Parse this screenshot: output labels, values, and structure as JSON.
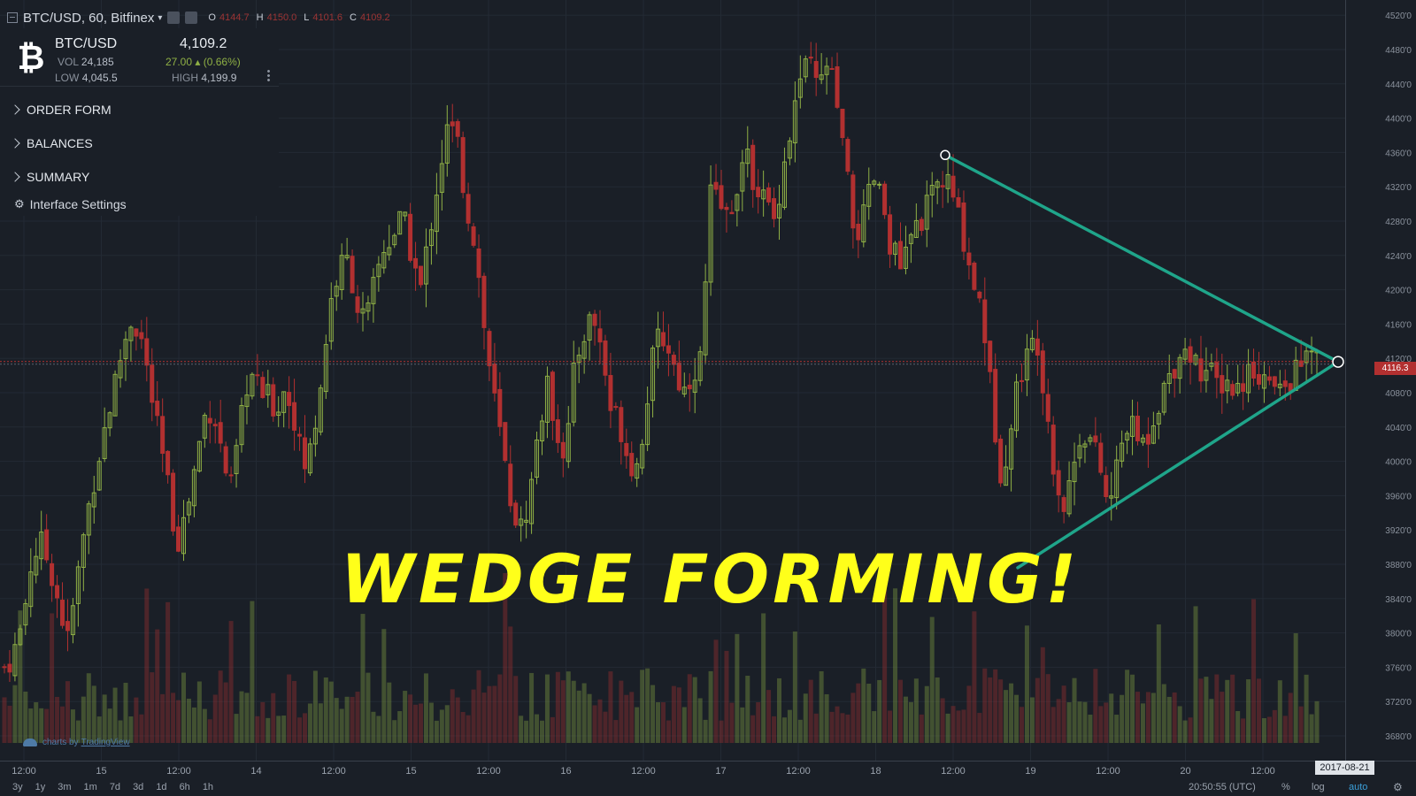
{
  "header": {
    "symbol": "BTC/USD, 60, Bitfinex",
    "ohlc": [
      {
        "k": "O",
        "v": "4144.7"
      },
      {
        "k": "H",
        "v": "4150.0"
      },
      {
        "k": "L",
        "v": "4101.6"
      },
      {
        "k": "C",
        "v": "4109.2"
      }
    ]
  },
  "ticker": {
    "pair": "BTC/USD",
    "price": "4,109.2",
    "vol_label": "VOL",
    "vol": "24,185",
    "change": "27.00 ▴ (0.66%)",
    "low_label": "LOW",
    "low": "4,045.5",
    "high_label": "HIGH",
    "high": "4,199.9",
    "logo_icon": "bitcoin-icon"
  },
  "panel": {
    "order_form": "ORDER FORM",
    "balances": "BALANCES",
    "summary": "SUMMARY",
    "settings": "Interface Settings"
  },
  "timeframes": [
    "3y",
    "1y",
    "3m",
    "1m",
    "7d",
    "3d",
    "1d",
    "6h",
    "1h"
  ],
  "footer": {
    "clock": "20:50:55 (UTC)",
    "pct": "%",
    "log": "log",
    "auto": "auto",
    "watermark_prefix": "charts by",
    "watermark_brand": "TradingView"
  },
  "last_price_label": "4116.3",
  "cursor_date": "2017-08-21",
  "annotation": "WEDGE FORMING!",
  "colors": {
    "background": "#1a1f27",
    "up": "#8fb045",
    "down": "#b23030",
    "wedge": "#1fa58a",
    "annotation": "#ffff1a"
  },
  "chart_data": {
    "type": "candlestick",
    "symbol": "BTC/USD",
    "interval": "60",
    "exchange": "Bitfinex",
    "ylim": [
      3660,
      4530
    ],
    "y_ticks": [
      3680,
      3720,
      3760,
      3800,
      3840,
      3880,
      3920,
      3960,
      4000,
      4040,
      4080,
      4120,
      4160,
      4200,
      4240,
      4280,
      4320,
      4360,
      4400,
      4440,
      4480,
      4520
    ],
    "x_ticks": [
      "12:00",
      "15",
      "12:00",
      "14",
      "12:00",
      "15",
      "12:00",
      "16",
      "12:00",
      "17",
      "12:00",
      "18",
      "12:00",
      "19",
      "12:00",
      "20",
      "12:00"
    ],
    "close_path": [
      3760,
      3775,
      3812,
      3885,
      3905,
      3880,
      3835,
      3790,
      3860,
      3930,
      3985,
      4035,
      4080,
      4130,
      4165,
      4150,
      4090,
      4030,
      3975,
      3905,
      3935,
      3990,
      4050,
      4065,
      4010,
      3965,
      4035,
      4105,
      4085,
      4075,
      4060,
      4085,
      4055,
      3990,
      4020,
      4095,
      4185,
      4225,
      4235,
      4180,
      4160,
      4215,
      4250,
      4265,
      4285,
      4240,
      4200,
      4270,
      4335,
      4390,
      4375,
      4300,
      4255,
      4155,
      4080,
      4015,
      3950,
      3920,
      3955,
      4040,
      4085,
      4040,
      4005,
      4110,
      4150,
      4170,
      4130,
      4060,
      4045,
      4000,
      3995,
      4075,
      4140,
      4145,
      4110,
      4080,
      4105,
      4120,
      4310,
      4300,
      4280,
      4330,
      4350,
      4325,
      4305,
      4280,
      4340,
      4395,
      4450,
      4460,
      4430,
      4470,
      4410,
      4335,
      4260,
      4285,
      4330,
      4300,
      4250,
      4225,
      4250,
      4280,
      4295,
      4320,
      4330,
      4300,
      4260,
      4210,
      4180,
      4080,
      3990,
      4020,
      4100,
      4120,
      4150,
      4075,
      3990,
      3945,
      3990,
      4040,
      4025,
      3995,
      3940,
      4000,
      4045,
      4030,
      4020,
      4055,
      4085,
      4105,
      4135,
      4125,
      4110,
      4105,
      4090,
      4095,
      4080,
      4100,
      4110,
      4100,
      4085,
      4080,
      4095,
      4110,
      4125,
      4116
    ],
    "wedge": {
      "upper": [
        {
          "price": 4357,
          "date": "18 09:00"
        },
        {
          "price": 4116,
          "date": "21 01:00"
        }
      ],
      "lower": [
        {
          "price": 3876,
          "date": "18 18:00"
        },
        {
          "price": 4116,
          "date": "21 01:00"
        }
      ]
    },
    "last_price": 4116.3,
    "current_close": 4109.2
  }
}
